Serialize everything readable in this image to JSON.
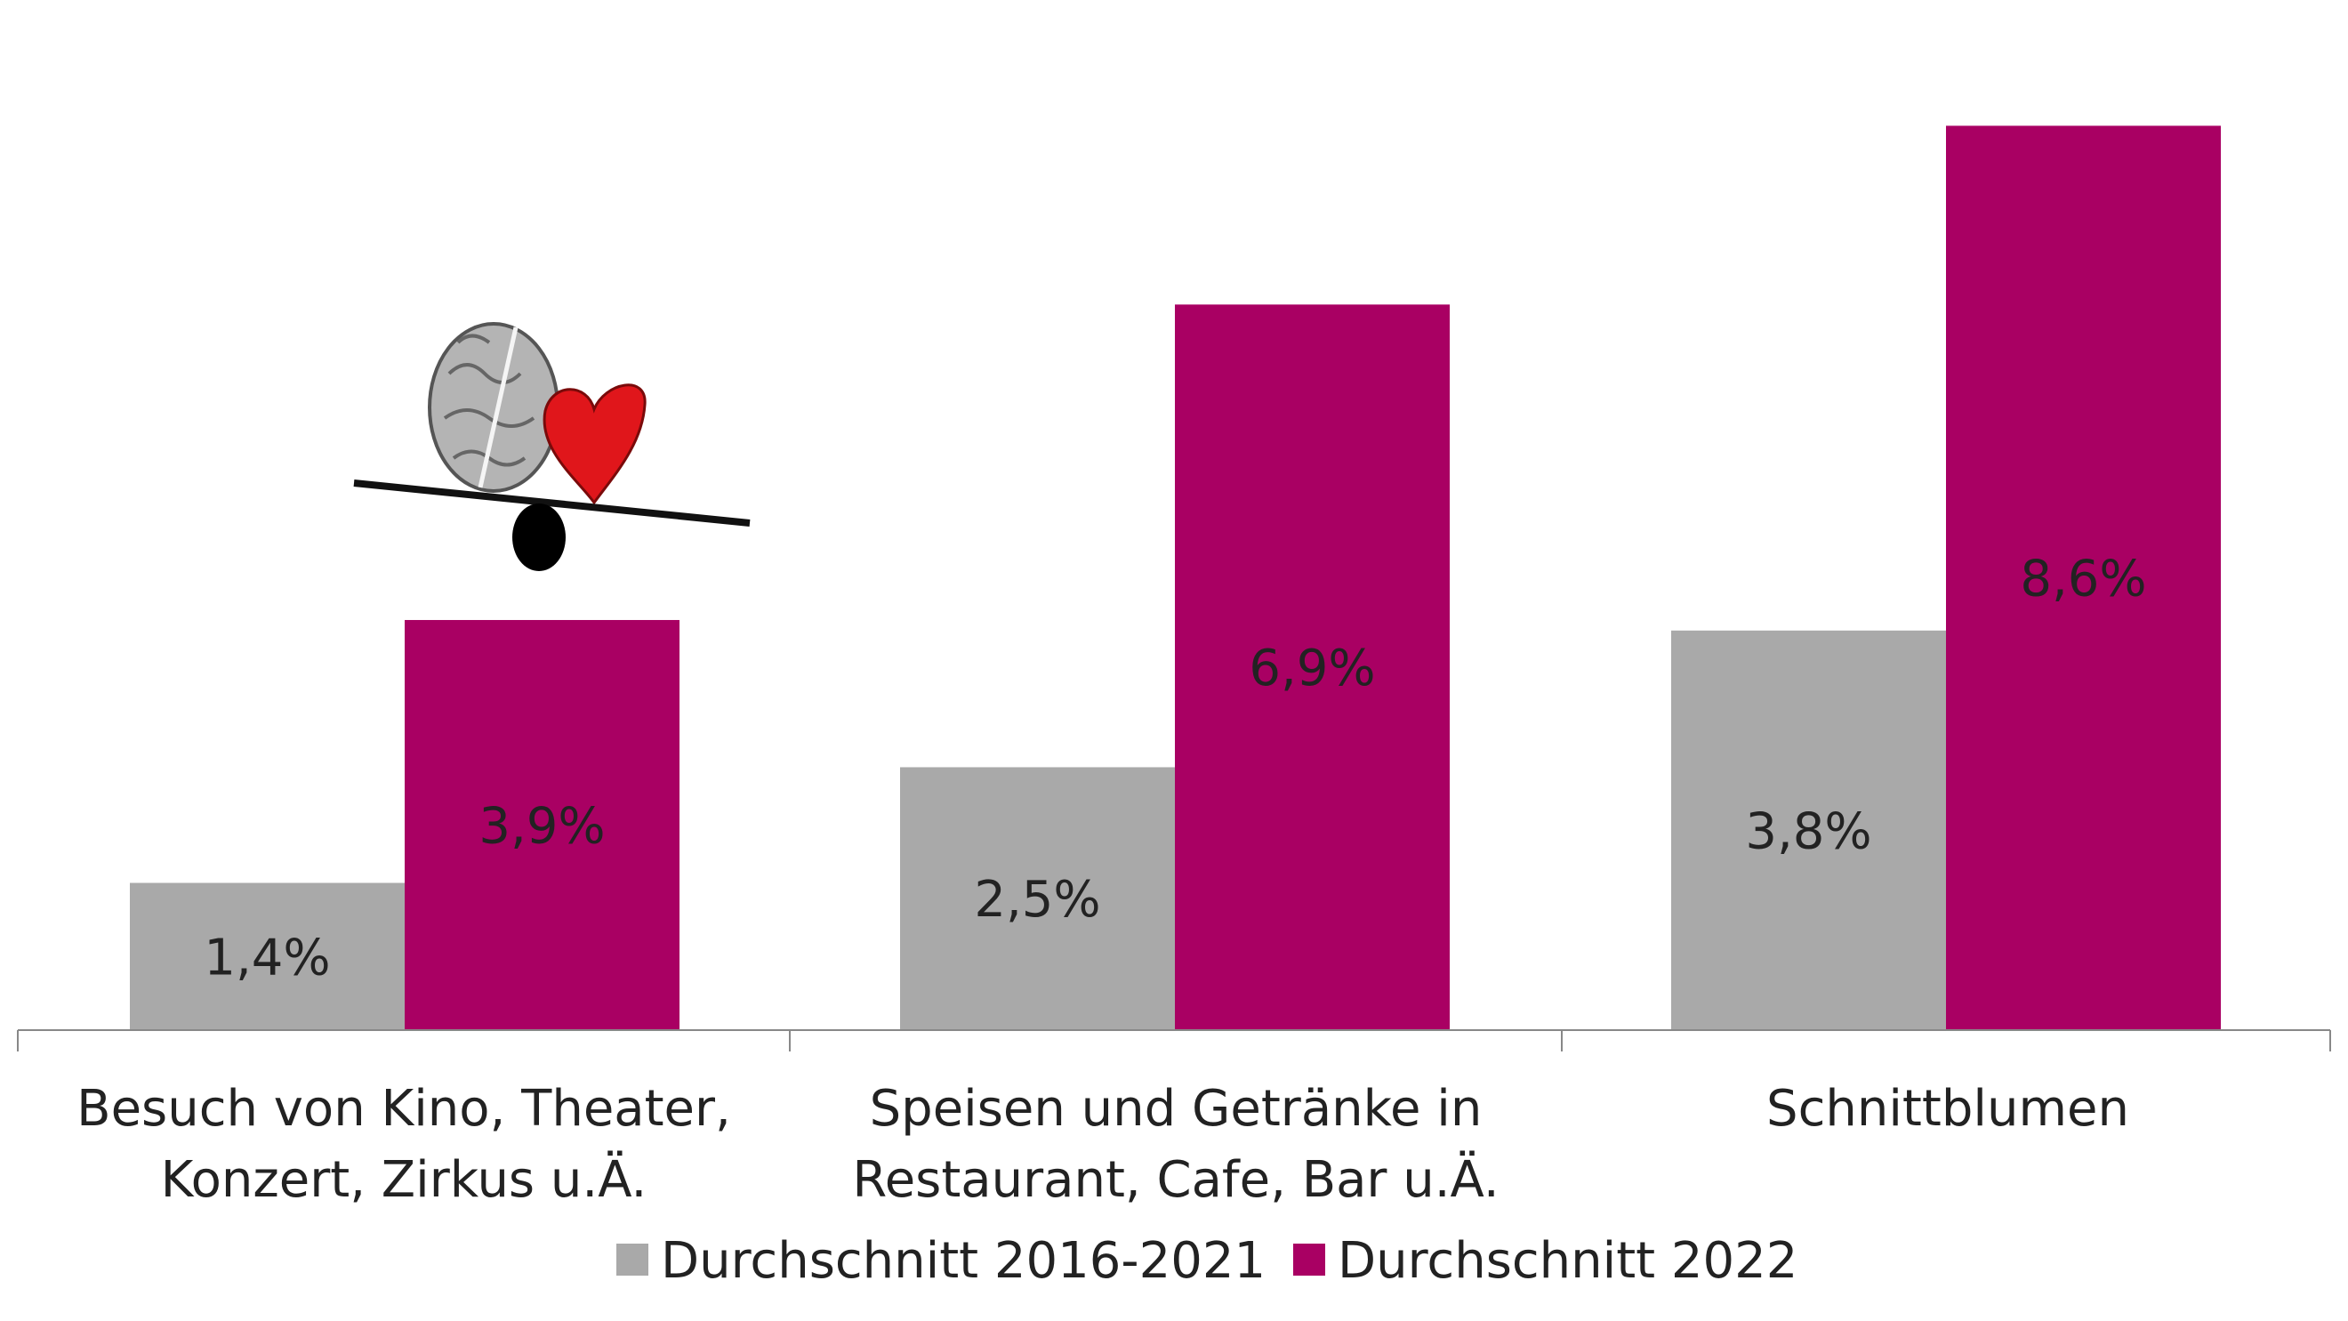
{
  "colors": {
    "series_1": "#a9a9a9",
    "series_2": "#a90063",
    "axis": "#888888",
    "text": "#222222"
  },
  "chart_data": {
    "type": "bar",
    "categories": [
      [
        "Besuch von Kino, Theater,",
        "Konzert, Zirkus u.Ä."
      ],
      [
        "Speisen und Getränke in",
        "Restaurant, Cafe, Bar u.Ä."
      ],
      [
        "Schnittblumen"
      ]
    ],
    "series": [
      {
        "name": "Durchschnitt 2016-2021",
        "values": [
          1.4,
          2.5,
          3.8
        ],
        "labels": [
          "1,4%",
          "2,5%",
          "3,8%"
        ]
      },
      {
        "name": "Durchschnitt 2022",
        "values": [
          3.9,
          6.9,
          8.6
        ],
        "labels": [
          "3,9%",
          "6,9%",
          "8,6%"
        ]
      }
    ],
    "ylim": [
      0,
      9
    ],
    "grid": false,
    "legend": "bottom-center",
    "decoration": "brain-and-heart-on-balance-icon"
  }
}
